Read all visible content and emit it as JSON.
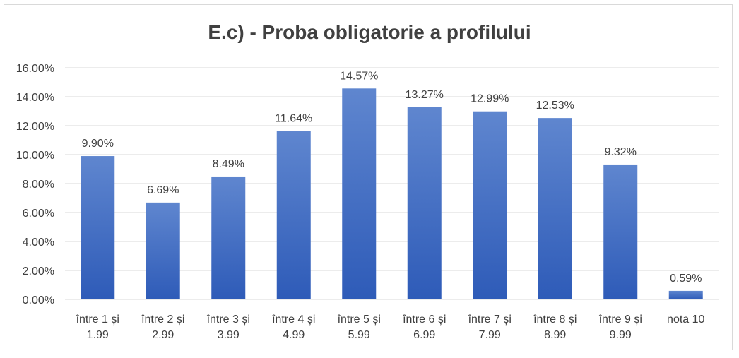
{
  "chart_data": {
    "type": "bar",
    "title": "E.c) - Proba obligatorie a profilului",
    "categories": [
      [
        "între 1 și",
        "1.99"
      ],
      [
        "între 2 și",
        "2.99"
      ],
      [
        "între 3 și",
        "3.99"
      ],
      [
        "între 4 și",
        "4.99"
      ],
      [
        "între 5 și",
        "5.99"
      ],
      [
        "între 6 și",
        "6.99"
      ],
      [
        "între 7 și",
        "7.99"
      ],
      [
        "între 8 și",
        "8.99"
      ],
      [
        "între 9 și",
        "9.99"
      ],
      [
        "nota 10"
      ]
    ],
    "values": [
      9.9,
      6.69,
      8.49,
      11.64,
      14.57,
      13.27,
      12.99,
      12.53,
      9.32,
      0.59
    ],
    "value_labels": [
      "9.90%",
      "6.69%",
      "8.49%",
      "11.64%",
      "14.57%",
      "13.27%",
      "12.99%",
      "12.53%",
      "9.32%",
      "0.59%"
    ],
    "yticks": [
      "0.00%",
      "2.00%",
      "4.00%",
      "6.00%",
      "8.00%",
      "10.00%",
      "12.00%",
      "14.00%",
      "16.00%"
    ],
    "ylim": [
      0,
      16
    ],
    "grid": true,
    "colors": {
      "bar_top": "#5f86cf",
      "bar_bottom": "#2e5bb8",
      "grid": "#d9d9d9",
      "text": "#404040"
    }
  }
}
